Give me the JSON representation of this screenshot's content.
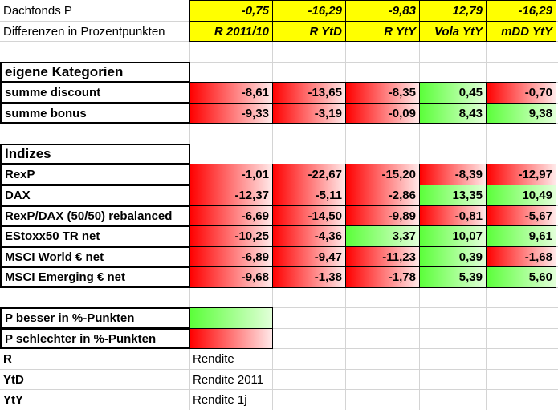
{
  "header": {
    "title": "Dachfonds P",
    "subtitle": "Differenzen in Prozentpunkten",
    "totals": [
      "-0,75",
      "-16,29",
      "-9,83",
      "12,79",
      "-16,29"
    ],
    "columns": [
      "R 2011/10",
      "R YtD",
      "R YtY",
      "Vola YtY",
      "mDD YtY"
    ]
  },
  "sections": [
    {
      "title": "eigene Kategorien",
      "rows": [
        {
          "label": "summe discount",
          "values": [
            "-8,61",
            "-13,65",
            "-8,35",
            "0,45",
            "-0,70"
          ]
        },
        {
          "label": "summe bonus",
          "values": [
            "-9,33",
            "-3,19",
            "-0,09",
            "8,43",
            "9,38"
          ]
        }
      ]
    },
    {
      "title": "Indizes",
      "rows": [
        {
          "label": "RexP",
          "values": [
            "-1,01",
            "-22,67",
            "-15,20",
            "-8,39",
            "-12,97"
          ]
        },
        {
          "label": "DAX",
          "values": [
            "-12,37",
            "-5,11",
            "-2,86",
            "13,35",
            "10,49"
          ]
        },
        {
          "label": "RexP/DAX (50/50) rebalanced",
          "values": [
            "-6,69",
            "-14,50",
            "-9,89",
            "-0,81",
            "-5,67"
          ]
        },
        {
          "label": "EStoxx50 TR net",
          "values": [
            "-10,25",
            "-4,36",
            "3,37",
            "10,07",
            "9,61"
          ]
        },
        {
          "label": "MSCI World € net",
          "values": [
            "-6,89",
            "-9,47",
            "-11,23",
            "0,39",
            "-1,68"
          ]
        },
        {
          "label": "MSCI Emerging € net",
          "values": [
            "-9,68",
            "-1,38",
            "-1,78",
            "5,39",
            "5,60"
          ]
        }
      ]
    }
  ],
  "legend": {
    "better": "P besser in %-Punkten",
    "worse": "P schlechter in %-Punkten",
    "terms": [
      {
        "term": "R",
        "meaning": "Rendite"
      },
      {
        "term": "YtD",
        "meaning": "Rendite 2011"
      },
      {
        "term": "YtY",
        "meaning": "Rendite 1j"
      }
    ]
  }
}
